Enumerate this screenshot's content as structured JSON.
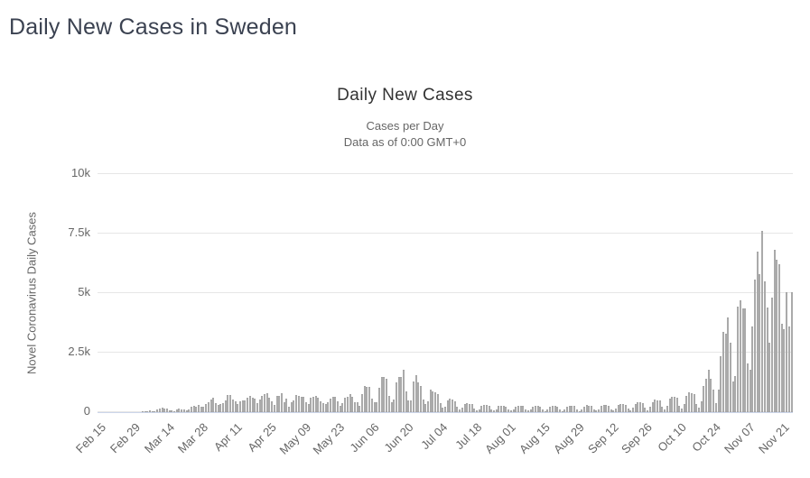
{
  "page": {
    "title": "Daily New Cases in Sweden"
  },
  "chart": {
    "title": "Daily New Cases",
    "subtitle_line1": "Cases per Day",
    "subtitle_line2": "Data as of 0:00 GMT+0",
    "y_axis_title": "Novel Coronavirus Daily Cases"
  },
  "chart_data": {
    "type": "bar",
    "title": "Daily New Cases",
    "subtitle": [
      "Cases per Day",
      "Data as of 0:00 GMT+0"
    ],
    "ylabel": "Novel Coronavirus Daily Cases",
    "xlabel": "",
    "ylim": [
      0,
      10000
    ],
    "grid": true,
    "legend": "none",
    "bar_color": "#b6b6b6",
    "grid_color": "#e6e6e6",
    "axis_line_color": "#ccd6eb",
    "x_unit": "day",
    "x_start_label": "Feb 15",
    "x_end_label": "Nov 25",
    "yticks": [
      {
        "value": 0,
        "label": "0"
      },
      {
        "value": 2500,
        "label": "2.5k"
      },
      {
        "value": 5000,
        "label": "5k"
      },
      {
        "value": 7500,
        "label": "7.5k"
      },
      {
        "value": 10000,
        "label": "10k"
      }
    ],
    "x_ticks": [
      {
        "i": 0,
        "label": "Feb 15"
      },
      {
        "i": 14,
        "label": "Feb 29"
      },
      {
        "i": 28,
        "label": "Mar 14"
      },
      {
        "i": 42,
        "label": "Mar 28"
      },
      {
        "i": 56,
        "label": "Apr 11"
      },
      {
        "i": 70,
        "label": "Apr 25"
      },
      {
        "i": 84,
        "label": "May 09"
      },
      {
        "i": 98,
        "label": "May 23"
      },
      {
        "i": 112,
        "label": "Jun 06"
      },
      {
        "i": 126,
        "label": "Jun 20"
      },
      {
        "i": 140,
        "label": "Jul 04"
      },
      {
        "i": 154,
        "label": "Jul 18"
      },
      {
        "i": 168,
        "label": "Aug 01"
      },
      {
        "i": 182,
        "label": "Aug 15"
      },
      {
        "i": 196,
        "label": "Aug 29"
      },
      {
        "i": 210,
        "label": "Sep 12"
      },
      {
        "i": 224,
        "label": "Sep 26"
      },
      {
        "i": 238,
        "label": "Oct 10"
      },
      {
        "i": 252,
        "label": "Oct 24"
      },
      {
        "i": 266,
        "label": "Nov 07"
      },
      {
        "i": 280,
        "label": "Nov 21"
      }
    ],
    "values": [
      0,
      0,
      0,
      0,
      0,
      0,
      0,
      0,
      0,
      0,
      0,
      1,
      5,
      7,
      2,
      1,
      2,
      9,
      22,
      42,
      52,
      66,
      42,
      45,
      97,
      141,
      182,
      155,
      153,
      85,
      93,
      57,
      112,
      159,
      131,
      96,
      80,
      131,
      231,
      266,
      240,
      296,
      239,
      214,
      328,
      407,
      512,
      612,
      365,
      312,
      344,
      376,
      487,
      726,
      722,
      544,
      466,
      332,
      465,
      497,
      482,
      613,
      676,
      606,
      563,
      392,
      545,
      682,
      751,
      812,
      610,
      463,
      286,
      695,
      681,
      790,
      428,
      562,
      235,
      404,
      495,
      702,
      673,
      642,
      656,
      401,
      348,
      602,
      637,
      673,
      625,
      466,
      383,
      350,
      422,
      554,
      649,
      637,
      462,
      271,
      384,
      597,
      648,
      749,
      639,
      401,
      429,
      272,
      776,
      1092,
      1080,
      1056,
      550,
      410,
      403,
      1041,
      1474,
      1476,
      1396,
      700,
      430,
      543,
      1239,
      1481,
      1487,
      1780,
      880,
      480,
      500,
      1270,
      1570,
      1240,
      1100,
      520,
      340,
      460,
      940,
      860,
      820,
      770,
      390,
      180,
      240,
      480,
      570,
      520,
      450,
      230,
      110,
      180,
      350,
      390,
      360,
      330,
      160,
      80,
      130,
      270,
      300,
      290,
      270,
      130,
      70,
      120,
      250,
      280,
      260,
      240,
      120,
      60,
      110,
      240,
      280,
      270,
      250,
      120,
      60,
      110,
      230,
      270,
      260,
      240,
      110,
      50,
      100,
      220,
      260,
      250,
      230,
      100,
      50,
      110,
      240,
      280,
      270,
      250,
      110,
      50,
      120,
      240,
      290,
      280,
      260,
      120,
      60,
      130,
      260,
      310,
      300,
      280,
      130,
      70,
      150,
      290,
      350,
      340,
      320,
      150,
      80,
      180,
      350,
      420,
      410,
      390,
      180,
      90,
      220,
      430,
      520,
      510,
      480,
      220,
      110,
      280,
      550,
      660,
      640,
      600,
      280,
      140,
      350,
      700,
      830,
      800,
      760,
      350,
      180,
      450,
      1100,
      1400,
      1780,
      1400,
      950,
      380,
      950,
      2350,
      3370,
      3290,
      3980,
      2900,
      1280,
      1515,
      4430,
      4700,
      4360,
      4360,
      2040,
      1780,
      3600,
      5570,
      6740,
      5800,
      7620,
      5500,
      4400,
      2900,
      4800,
      6800,
      6400,
      6200,
      3700,
      3500,
      5050,
      3600,
      5050
    ]
  }
}
